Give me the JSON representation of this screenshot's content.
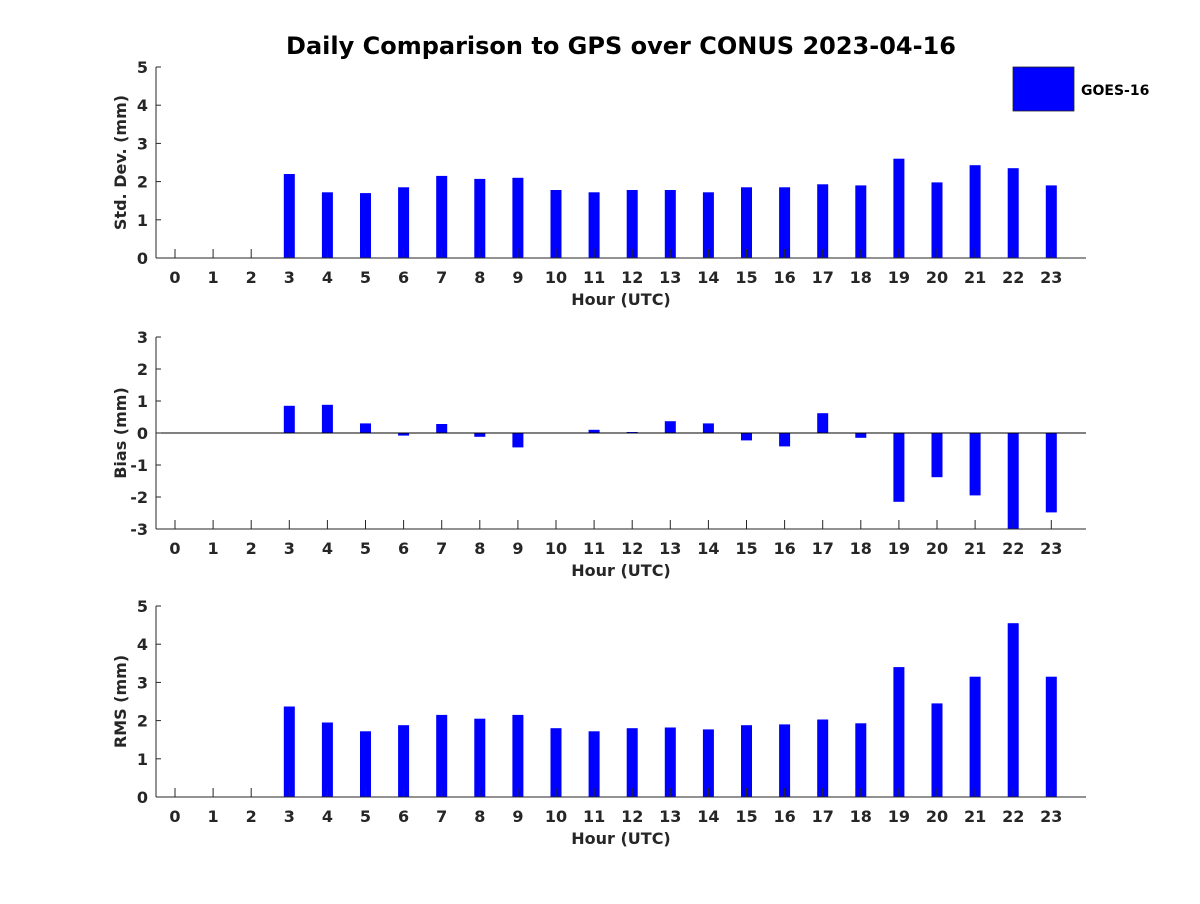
{
  "figure": {
    "title": "Daily Comparison to GPS over CONUS 2023-04-16",
    "bar_color": "#0000ff",
    "axis_color": "#262626",
    "legend": {
      "label": "GOES-16",
      "placement": "top-right"
    }
  },
  "chart_data": [
    {
      "type": "bar",
      "name": "std-dev",
      "categories": [
        0,
        1,
        2,
        3,
        4,
        5,
        6,
        7,
        8,
        9,
        10,
        11,
        12,
        13,
        14,
        15,
        16,
        17,
        18,
        19,
        20,
        21,
        22,
        23
      ],
      "series": [
        {
          "name": "GOES-16",
          "values": [
            null,
            null,
            null,
            2.2,
            1.72,
            1.7,
            1.85,
            2.15,
            2.07,
            2.1,
            1.78,
            1.72,
            1.78,
            1.78,
            1.72,
            1.85,
            1.85,
            1.93,
            1.9,
            2.6,
            1.98,
            2.43,
            2.35,
            1.9
          ]
        }
      ],
      "xlabel": "Hour (UTC)",
      "ylabel": "Std. Dev. (mm)",
      "ylim": [
        0,
        5
      ],
      "yticks": [
        0,
        1,
        2,
        3,
        4,
        5
      ],
      "zero_line": false
    },
    {
      "type": "bar",
      "name": "bias",
      "categories": [
        0,
        1,
        2,
        3,
        4,
        5,
        6,
        7,
        8,
        9,
        10,
        11,
        12,
        13,
        14,
        15,
        16,
        17,
        18,
        19,
        20,
        21,
        22,
        23
      ],
      "series": [
        {
          "name": "GOES-16",
          "values": [
            null,
            null,
            null,
            0.85,
            0.88,
            0.3,
            -0.08,
            0.28,
            -0.12,
            -0.45,
            0.0,
            0.1,
            0.03,
            0.37,
            0.3,
            -0.23,
            -0.42,
            0.62,
            -0.15,
            -2.15,
            -1.38,
            -1.95,
            -3.0,
            -2.48
          ]
        }
      ],
      "xlabel": "Hour (UTC)",
      "ylabel": "Bias (mm)",
      "ylim": [
        -3,
        3
      ],
      "yticks": [
        -3,
        -2,
        -1,
        0,
        1,
        2,
        3
      ],
      "zero_line": true
    },
    {
      "type": "bar",
      "name": "rms",
      "categories": [
        0,
        1,
        2,
        3,
        4,
        5,
        6,
        7,
        8,
        9,
        10,
        11,
        12,
        13,
        14,
        15,
        16,
        17,
        18,
        19,
        20,
        21,
        22,
        23
      ],
      "series": [
        {
          "name": "GOES-16",
          "values": [
            null,
            null,
            null,
            2.37,
            1.95,
            1.72,
            1.88,
            2.15,
            2.05,
            2.15,
            1.8,
            1.72,
            1.8,
            1.82,
            1.77,
            1.88,
            1.9,
            2.03,
            1.93,
            3.4,
            2.45,
            3.15,
            4.55,
            3.15
          ]
        }
      ],
      "xlabel": "Hour (UTC)",
      "ylabel": "RMS (mm)",
      "ylim": [
        0,
        5
      ],
      "yticks": [
        0,
        1,
        2,
        3,
        4,
        5
      ],
      "zero_line": false
    }
  ]
}
